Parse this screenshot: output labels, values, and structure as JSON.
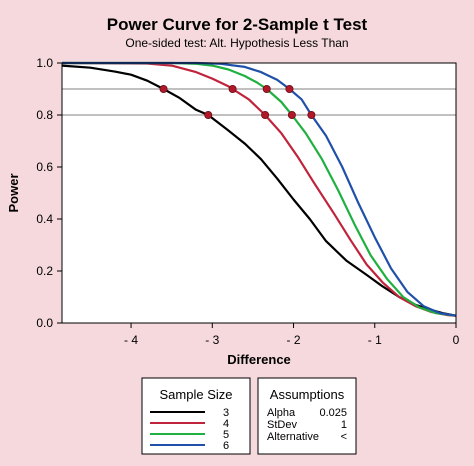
{
  "colors": {
    "background": "#f5d9dc",
    "plot_background": "#ffffff",
    "series_3": "#000000",
    "series_4": "#c0243c",
    "series_5": "#20b040",
    "series_6": "#2050a8",
    "marker": "#b01828"
  },
  "chart_data": {
    "type": "line",
    "title": "Power Curve for 2-Sample t Test",
    "subtitle": "One-sided test: Alt. Hypothesis Less Than",
    "xlabel": "Difference",
    "ylabel": "Power",
    "xlim": [
      -4.85,
      0
    ],
    "ylim": [
      0,
      1.0
    ],
    "x_ticks": [
      -4,
      -3,
      -2,
      -1,
      0
    ],
    "x_tick_labels": [
      "- 4",
      "- 3",
      "- 2",
      "- 1",
      "0"
    ],
    "y_ticks": [
      0,
      0.2,
      0.4,
      0.6,
      0.8,
      1.0
    ],
    "y_tick_labels": [
      "0.0",
      "0.2",
      "0.4",
      "0.6",
      "0.8",
      "1.0"
    ],
    "reference_lines": [
      0.8,
      0.9
    ],
    "grid": false,
    "series": [
      {
        "name": "3",
        "color": "#000000",
        "points": [
          [
            -4.85,
            0.99
          ],
          [
            -4.5,
            0.982
          ],
          [
            -4.2,
            0.967
          ],
          [
            -4.0,
            0.955
          ],
          [
            -3.8,
            0.932
          ],
          [
            -3.6,
            0.9
          ],
          [
            -3.4,
            0.865
          ],
          [
            -3.2,
            0.82
          ],
          [
            -3.05,
            0.8
          ],
          [
            -2.8,
            0.74
          ],
          [
            -2.6,
            0.69
          ],
          [
            -2.4,
            0.63
          ],
          [
            -2.2,
            0.555
          ],
          [
            -2.0,
            0.475
          ],
          [
            -1.8,
            0.4
          ],
          [
            -1.6,
            0.315
          ],
          [
            -1.35,
            0.24
          ],
          [
            -1.1,
            0.185
          ],
          [
            -0.9,
            0.14
          ],
          [
            -0.7,
            0.1
          ],
          [
            -0.5,
            0.07
          ],
          [
            -0.3,
            0.05
          ],
          [
            -0.15,
            0.037
          ],
          [
            0,
            0.028
          ]
        ]
      },
      {
        "name": "4",
        "color": "#c0243c",
        "points": [
          [
            -4.85,
            1.0
          ],
          [
            -3.8,
            0.998
          ],
          [
            -3.5,
            0.99
          ],
          [
            -3.2,
            0.965
          ],
          [
            -3.0,
            0.94
          ],
          [
            -2.8,
            0.91
          ],
          [
            -2.75,
            0.9
          ],
          [
            -2.55,
            0.86
          ],
          [
            -2.35,
            0.8
          ],
          [
            -2.15,
            0.73
          ],
          [
            -1.95,
            0.64
          ],
          [
            -1.75,
            0.54
          ],
          [
            -1.5,
            0.42
          ],
          [
            -1.3,
            0.32
          ],
          [
            -1.1,
            0.225
          ],
          [
            -0.9,
            0.155
          ],
          [
            -0.7,
            0.1
          ],
          [
            -0.5,
            0.065
          ],
          [
            -0.3,
            0.042
          ],
          [
            -0.1,
            0.03
          ],
          [
            0,
            0.028
          ]
        ]
      },
      {
        "name": "5",
        "color": "#20b040",
        "points": [
          [
            -4.85,
            1.0
          ],
          [
            -3.5,
            1.0
          ],
          [
            -3.2,
            0.997
          ],
          [
            -3.0,
            0.99
          ],
          [
            -2.8,
            0.975
          ],
          [
            -2.6,
            0.95
          ],
          [
            -2.45,
            0.925
          ],
          [
            -2.33,
            0.9
          ],
          [
            -2.15,
            0.85
          ],
          [
            -2.02,
            0.8
          ],
          [
            -1.85,
            0.73
          ],
          [
            -1.65,
            0.63
          ],
          [
            -1.45,
            0.51
          ],
          [
            -1.25,
            0.38
          ],
          [
            -1.05,
            0.26
          ],
          [
            -0.85,
            0.17
          ],
          [
            -0.65,
            0.1
          ],
          [
            -0.45,
            0.06
          ],
          [
            -0.25,
            0.038
          ],
          [
            0,
            0.028
          ]
        ]
      },
      {
        "name": "6",
        "color": "#2050a8",
        "points": [
          [
            -4.85,
            1.0
          ],
          [
            -3.2,
            1.0
          ],
          [
            -2.9,
            0.997
          ],
          [
            -2.6,
            0.985
          ],
          [
            -2.4,
            0.965
          ],
          [
            -2.2,
            0.935
          ],
          [
            -2.05,
            0.9
          ],
          [
            -1.9,
            0.86
          ],
          [
            -1.78,
            0.8
          ],
          [
            -1.6,
            0.72
          ],
          [
            -1.4,
            0.6
          ],
          [
            -1.2,
            0.46
          ],
          [
            -1.0,
            0.33
          ],
          [
            -0.8,
            0.21
          ],
          [
            -0.6,
            0.12
          ],
          [
            -0.4,
            0.065
          ],
          [
            -0.2,
            0.038
          ],
          [
            0,
            0.028
          ]
        ]
      }
    ],
    "markers": [
      [
        -3.6,
        0.9
      ],
      [
        -3.05,
        0.8
      ],
      [
        -2.75,
        0.9
      ],
      [
        -2.35,
        0.8
      ],
      [
        -2.33,
        0.9
      ],
      [
        -2.02,
        0.8
      ],
      [
        -2.05,
        0.9
      ],
      [
        -1.78,
        0.8
      ]
    ],
    "legend": {
      "title": "Sample Size",
      "placement": "bottom-left",
      "entries": [
        {
          "label": "3",
          "color": "#000000"
        },
        {
          "label": "4",
          "color": "#c0243c"
        },
        {
          "label": "5",
          "color": "#20b040"
        },
        {
          "label": "6",
          "color": "#2050a8"
        }
      ]
    },
    "assumptions": {
      "title": "Assumptions",
      "placement": "bottom-right",
      "rows": [
        {
          "label": "Alpha",
          "value": "0.025"
        },
        {
          "label": "StDev",
          "value": "1"
        },
        {
          "label": "Alternative",
          "value": "<"
        }
      ]
    }
  }
}
